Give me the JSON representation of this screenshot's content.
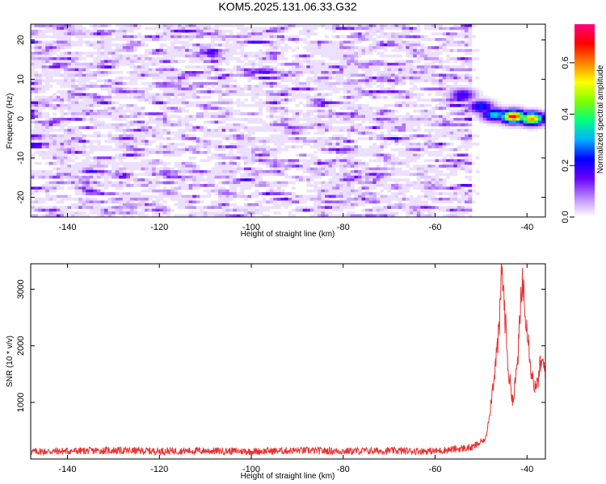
{
  "chart_data": [
    {
      "type": "heatmap",
      "title": "KOM5.2025.131.06.33.G32",
      "xlabel": "Height of straight line (km)",
      "ylabel": "Frequency (Hz)",
      "xlim": [
        -148,
        -36
      ],
      "ylim": [
        -25,
        24
      ],
      "xticks": [
        -140,
        -120,
        -100,
        -80,
        -60,
        -40
      ],
      "yticks": [
        -20,
        -10,
        0,
        10,
        20
      ],
      "colorbar": {
        "label": "Normalized spectral amplitude",
        "range": [
          0,
          0.75
        ],
        "ticks": [
          0.0,
          0.2,
          0.4,
          0.6
        ]
      },
      "features": [
        {
          "x": -54,
          "y": 6,
          "amplitude": 0.2
        },
        {
          "x": -50,
          "y": 3,
          "amplitude": 0.25
        },
        {
          "x": -47,
          "y": 1,
          "amplitude": 0.35
        },
        {
          "x": -43,
          "y": 0.5,
          "amplitude": 0.7
        },
        {
          "x": -39,
          "y": 0,
          "amplitude": 0.6
        }
      ],
      "colors": {
        "background_low": "#c9a3ff",
        "mid": "#7a2cff",
        "high": "#ff1a4b"
      }
    },
    {
      "type": "line",
      "xlabel": "Height of straight line (km)",
      "ylabel": "SNR (10 * v/v)",
      "xlim": [
        -148,
        -36
      ],
      "ylim": [
        0,
        3450
      ],
      "xticks": [
        -140,
        -120,
        -100,
        -80,
        -60,
        -40
      ],
      "yticks": [
        1000,
        2000,
        3000
      ],
      "line_color": "#e83030",
      "series": [
        {
          "x": [
            -148,
            -140,
            -130,
            -120,
            -110,
            -100,
            -90,
            -80,
            -70,
            -60,
            -52,
            -49,
            -48,
            -47,
            -46,
            -45.5,
            -45,
            -44,
            -43,
            -42,
            -41,
            -40,
            -39,
            -38,
            -37,
            -36
          ],
          "values": [
            130,
            140,
            150,
            140,
            145,
            135,
            150,
            140,
            145,
            140,
            200,
            350,
            900,
            1600,
            2300,
            3450,
            2800,
            1500,
            1000,
            1800,
            3200,
            2400,
            1500,
            1200,
            1700,
            1600
          ]
        }
      ]
    }
  ]
}
